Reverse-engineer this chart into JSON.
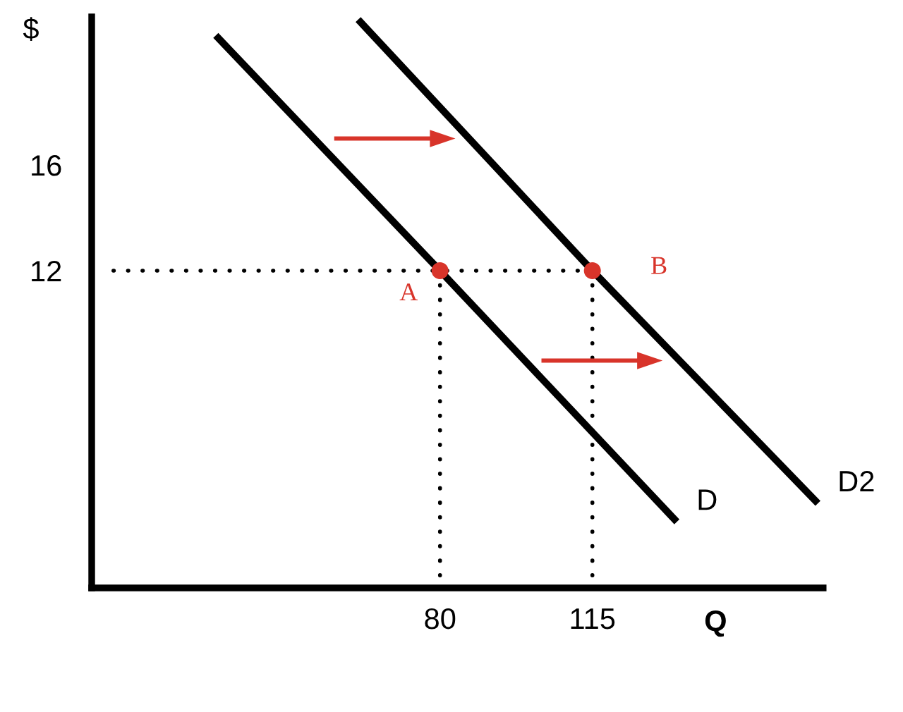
{
  "chart_data": {
    "type": "line",
    "xlabel": "Q",
    "ylabel": "$",
    "xlim": [
      0,
      168
    ],
    "ylim": [
      0,
      21.6
    ],
    "xticks": [
      80,
      115
    ],
    "yticks": [
      12,
      16
    ],
    "grid": false,
    "legend": false,
    "series": [
      {
        "name": "D",
        "color": "#000000",
        "x": [
          28.5,
          80,
          134.4
        ],
        "values": [
          20.9,
          12,
          2.5
        ]
      },
      {
        "name": "D2",
        "color": "#000000",
        "x": [
          61.2,
          115,
          166.8
        ],
        "values": [
          21.5,
          12,
          3.2
        ]
      },
      {
        "color": "#000000",
        "line_style": "dotted",
        "x": [
          115,
          2
        ],
        "values": [
          12,
          12
        ]
      },
      {
        "color": "#000000",
        "line_style": "dotted",
        "x": [
          80,
          80
        ],
        "values": [
          12,
          0
        ]
      },
      {
        "color": "#000000",
        "line_style": "dotted",
        "x": [
          115,
          115
        ],
        "values": [
          12,
          0
        ]
      },
      {
        "type": "scatter",
        "color": "#d8342a",
        "marker": "circle",
        "x": [
          80,
          115
        ],
        "values": [
          12,
          12
        ]
      },
      {
        "color": "#d8342a",
        "marker": "triangle",
        "x": [
          55.7,
          80.6
        ],
        "values": [
          17,
          17
        ]
      },
      {
        "color": "#d8342a",
        "marker": "triangle",
        "x": [
          103.3,
          128.2
        ],
        "values": [
          8.6,
          8.6
        ]
      }
    ],
    "annotations": [
      {
        "text": "A",
        "x": 80,
        "y": 12
      },
      {
        "text": "B",
        "x": 115,
        "y": 12
      }
    ]
  }
}
